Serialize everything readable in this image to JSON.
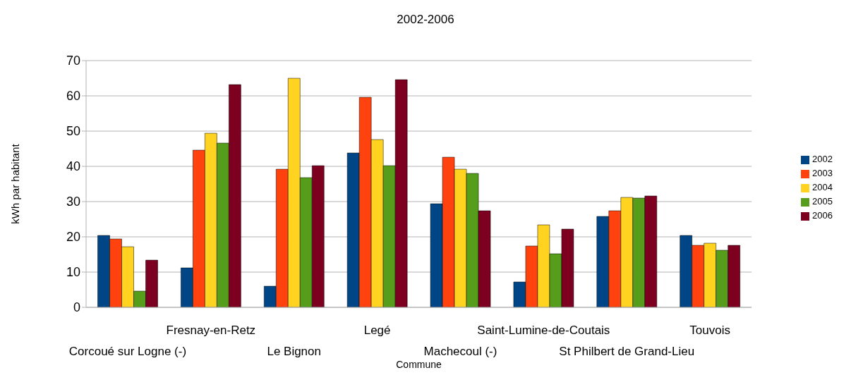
{
  "chart_data": {
    "type": "bar",
    "title": "2002-2006",
    "xlabel": "Commune",
    "ylabel": "kWh par habitant",
    "categories": [
      "Corcoué sur Logne (-)",
      "Fresnay-en-Retz",
      "Le Bignon",
      "Legé",
      "Machecoul (-)",
      "Saint-Lumine-de-Coutais",
      "St Philbert de Grand-Lieu",
      "Touvois"
    ],
    "series": [
      {
        "name": "2002",
        "color": "#004586",
        "values": [
          20.4,
          11.2,
          6,
          43.8,
          29.4,
          7.2,
          25.8,
          20.4
        ]
      },
      {
        "name": "2003",
        "color": "#ff420e",
        "values": [
          19.4,
          44.6,
          39.2,
          59.6,
          42.6,
          17.4,
          27.4,
          17.6
        ]
      },
      {
        "name": "2004",
        "color": "#ffd320",
        "values": [
          17.2,
          49.4,
          65,
          47.6,
          39.2,
          23.4,
          31.2,
          18.2
        ]
      },
      {
        "name": "2005",
        "color": "#579d1c",
        "values": [
          4.6,
          46.6,
          36.8,
          40.2,
          38,
          15.2,
          31,
          16.2
        ]
      },
      {
        "name": "2006",
        "color": "#7e0021",
        "values": [
          13.4,
          63.2,
          40.2,
          64.6,
          27.4,
          22.2,
          31.6,
          17.6
        ]
      }
    ],
    "ylim": [
      0,
      70
    ],
    "yticks": [
      0,
      10,
      20,
      30,
      40,
      50,
      60,
      70
    ],
    "grid": "y",
    "legend": "right"
  }
}
